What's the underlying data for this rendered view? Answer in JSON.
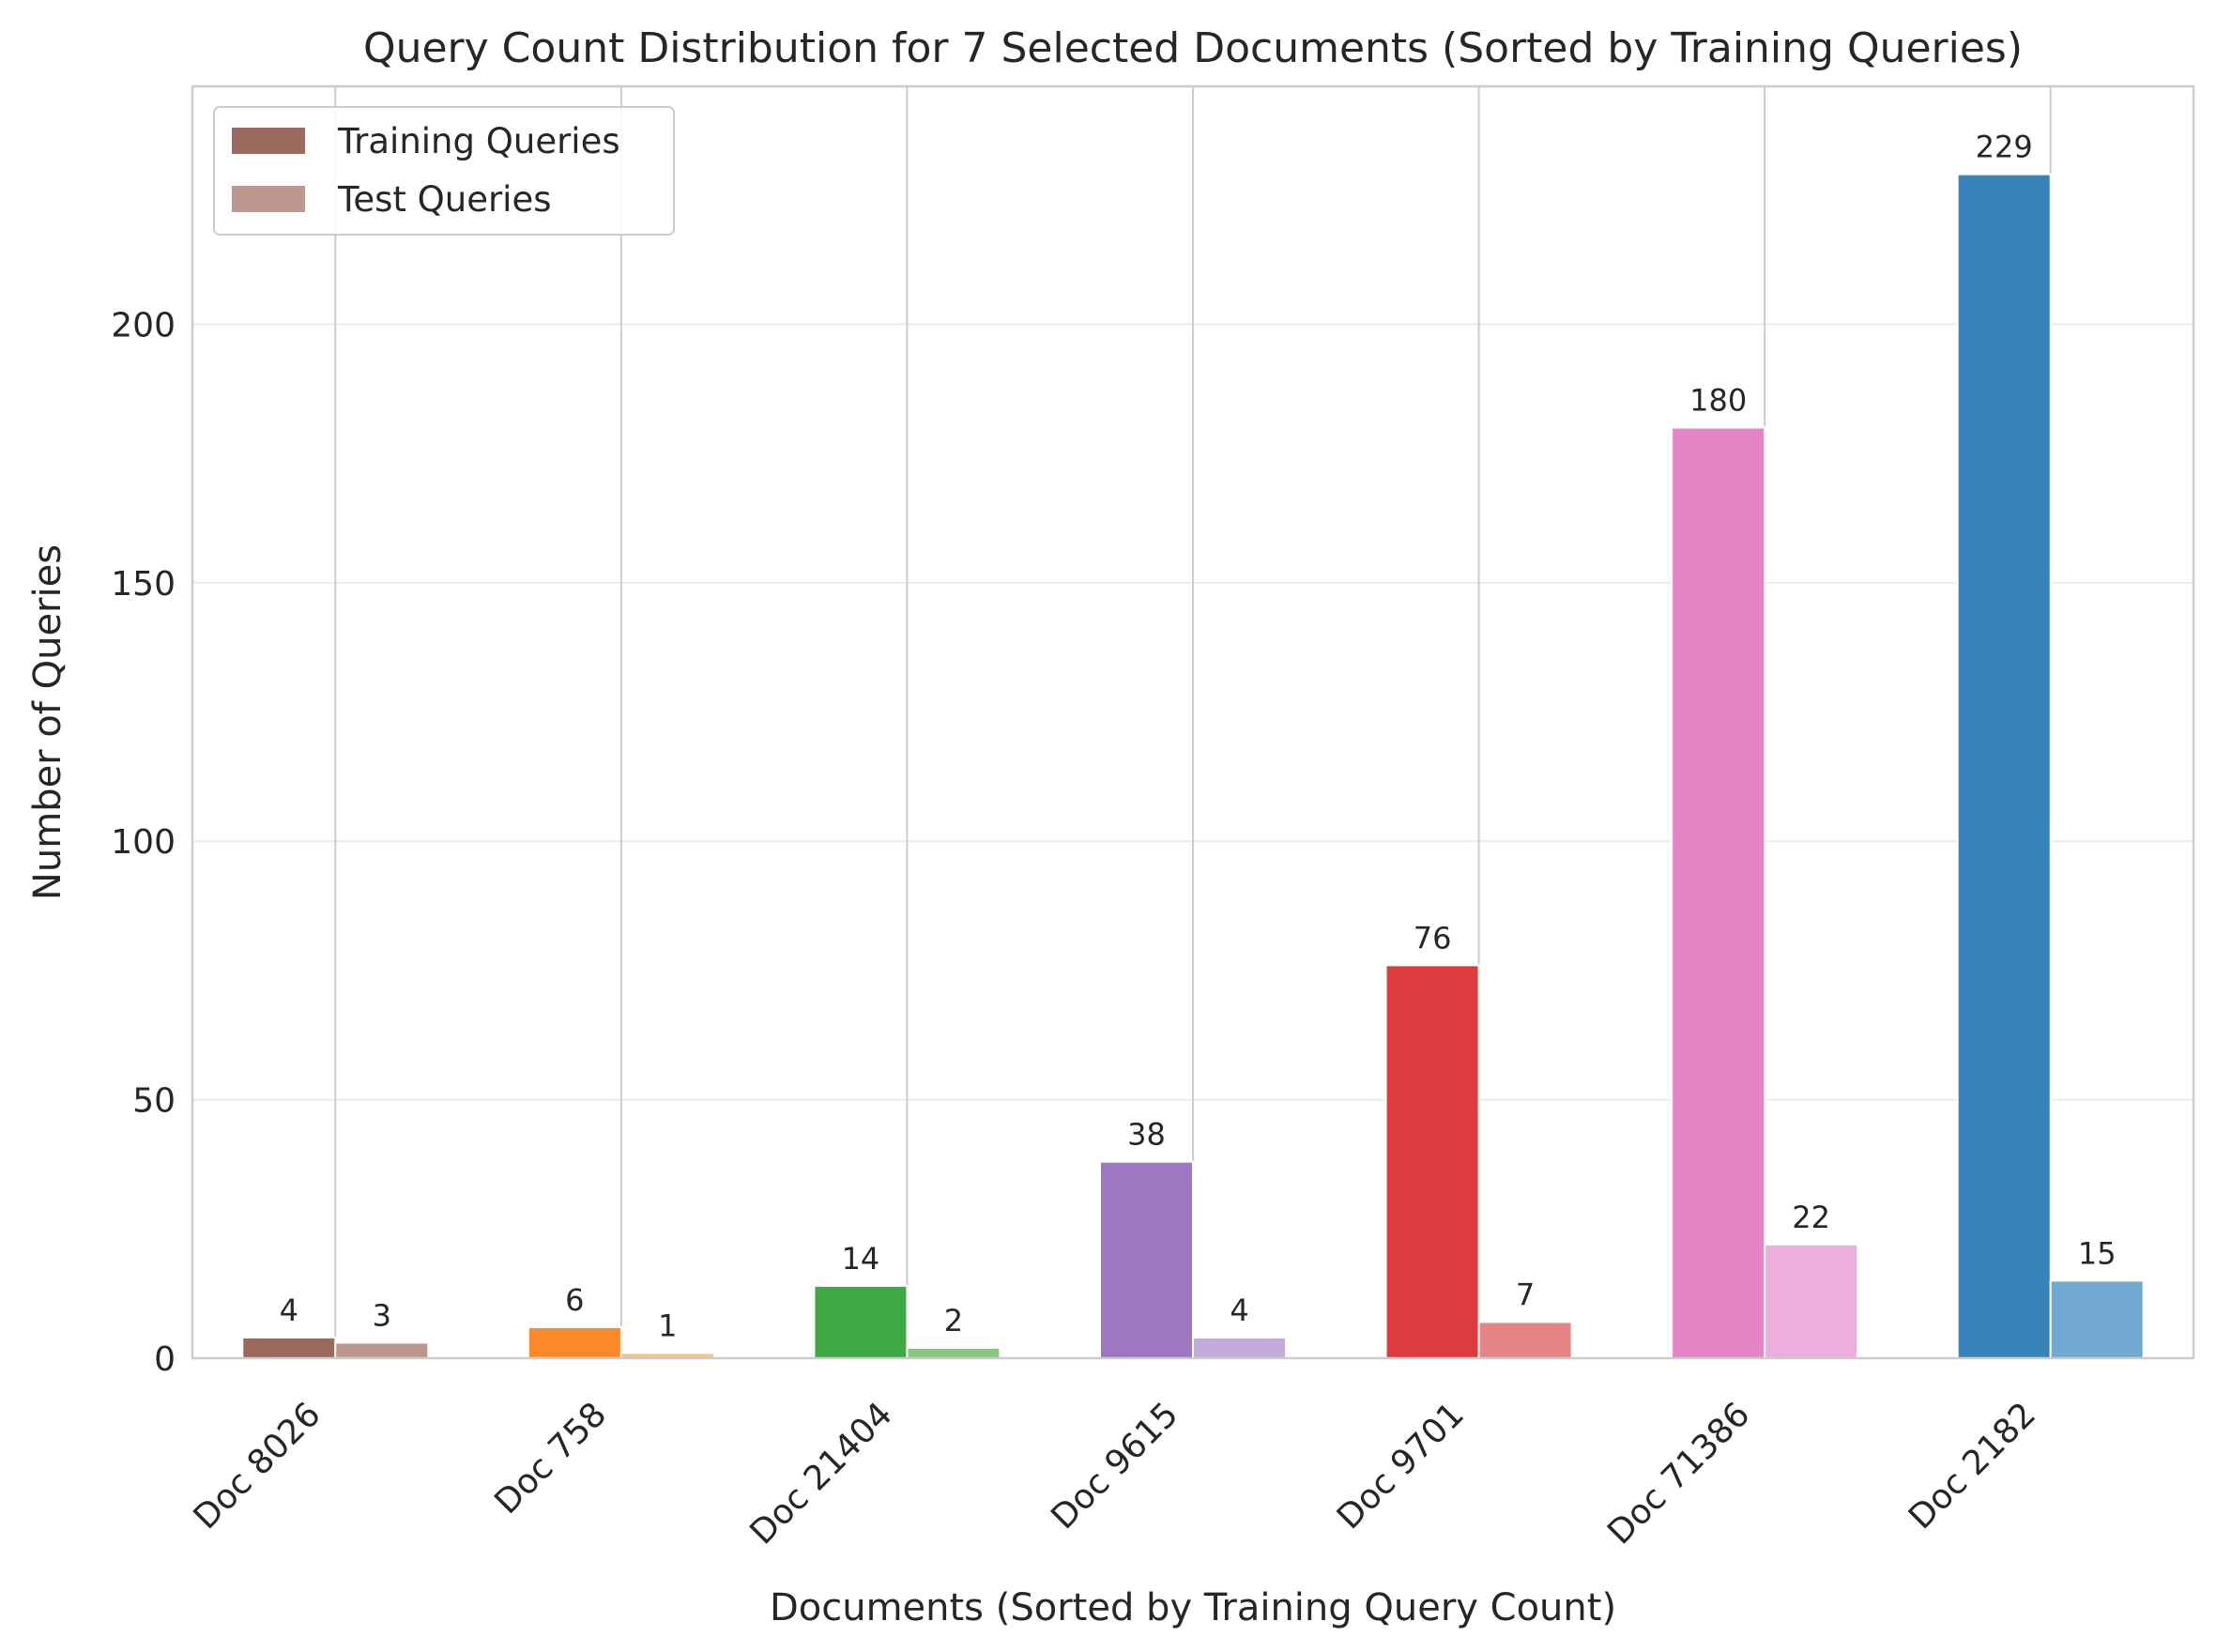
{
  "chart_data": {
    "type": "bar",
    "title": "Query Count Distribution for 7 Selected Documents (Sorted by Training Queries)",
    "xlabel": "Documents (Sorted by Training Query Count)",
    "ylabel": "Number of Queries",
    "categories": [
      "Doc 8026",
      "Doc 758",
      "Doc 21404",
      "Doc 9615",
      "Doc 9701",
      "Doc 71386",
      "Doc 2182"
    ],
    "series": [
      {
        "name": "Training Queries",
        "values": [
          4,
          6,
          14,
          38,
          76,
          180,
          229
        ],
        "colors": [
          "#9a6a5f",
          "#fd8a2a",
          "#40a843",
          "#9d78c2",
          "#db3d3e",
          "#e685c6",
          "#3683b9"
        ]
      },
      {
        "name": "Test Queries",
        "values": [
          3,
          1,
          2,
          4,
          7,
          22,
          15
        ],
        "colors": [
          "#bc958c",
          "#fdbf7f",
          "#88c87c",
          "#c2aad9",
          "#e58585",
          "#edaedb",
          "#72a9d0"
        ]
      }
    ],
    "legend_colors": [
      "#9a6a5f",
      "#bc958c"
    ],
    "ylim": [
      0,
      246
    ],
    "yticks": [
      0,
      50,
      100,
      150,
      200
    ],
    "grid": true,
    "legend_position": "top-left",
    "xtick_rotation": -45
  }
}
